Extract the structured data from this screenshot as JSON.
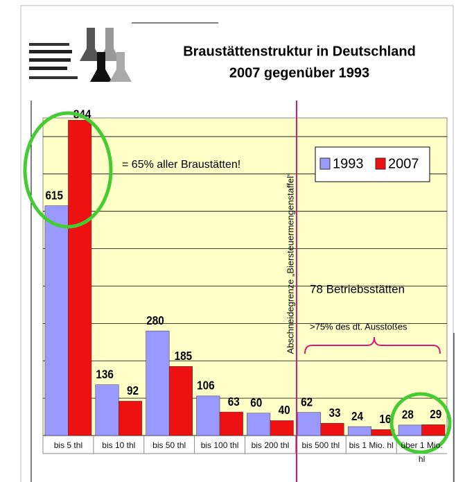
{
  "chart_data": {
    "type": "bar",
    "title": "Braustättenstruktur in  Deutschland",
    "subtitle": "2007  gegenüber 1993",
    "categories": [
      "bis 5 thl",
      "bis 10 thl",
      "bis 50 thl",
      "bis 100 thl",
      "bis 200 thl",
      "bis 500 thl",
      "bis 1 Mio. hl",
      "über 1 Mio. hl"
    ],
    "series": [
      {
        "name": "1993",
        "color": "#9999ff",
        "values": [
          615,
          136,
          280,
          106,
          60,
          62,
          24,
          28
        ]
      },
      {
        "name": "2007",
        "color": "#ee1111",
        "values": [
          844,
          92,
          185,
          63,
          40,
          33,
          16,
          29
        ]
      }
    ],
    "ylim": [
      0,
      850
    ],
    "yticks": [
      0,
      100,
      200,
      300,
      400,
      500,
      600,
      700,
      800
    ],
    "grid": true,
    "legend": "top-right",
    "annotations": {
      "share": "= 65% aller Braustätten!",
      "sites": "78 Betriebsstätten",
      "output": ">75% des dt. Ausstoßes",
      "cutoff": "Abschneidegrenze „Biersteuermengenstaffel“"
    }
  }
}
